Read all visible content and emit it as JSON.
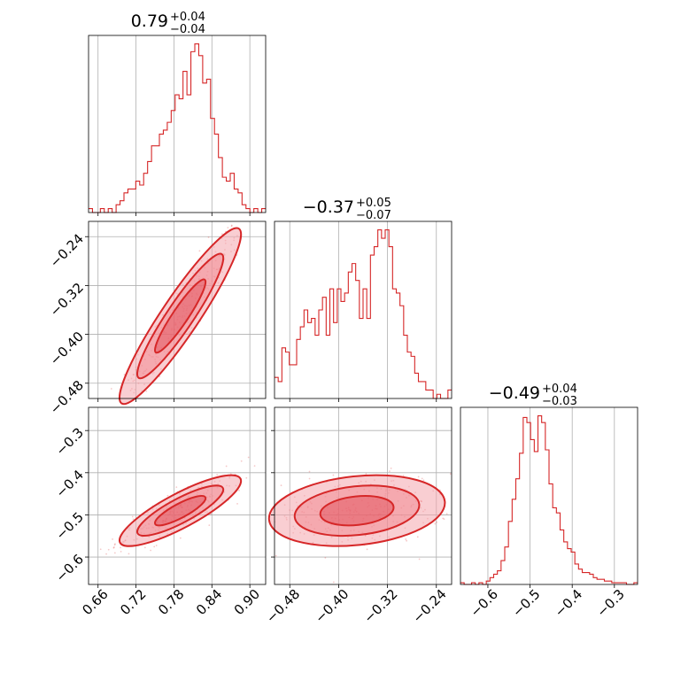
{
  "chart_data": {
    "type": "corner",
    "color": "#d62728",
    "contour_fill": "#f4a6ad",
    "grid": true,
    "parameters": [
      {
        "median": 0.79,
        "plus": 0.04,
        "minus": 0.04,
        "range": [
          0.645,
          0.925
        ],
        "ticks": [
          0.66,
          0.72,
          0.78,
          0.84,
          0.9
        ],
        "tick_labels": [
          "0.66",
          "0.72",
          "0.78",
          "0.84",
          "0.90"
        ]
      },
      {
        "median": -0.37,
        "plus": 0.05,
        "minus": 0.07,
        "range": [
          -0.505,
          -0.215
        ],
        "ticks": [
          -0.48,
          -0.4,
          -0.32,
          -0.24
        ],
        "tick_labels": [
          "−0.48",
          "−0.40",
          "−0.32",
          "−0.24"
        ]
      },
      {
        "median": -0.49,
        "plus": 0.04,
        "minus": 0.03,
        "range": [
          -0.665,
          -0.245
        ],
        "ticks": [
          -0.6,
          -0.5,
          -0.4,
          -0.3
        ],
        "tick_labels": [
          "−0.6",
          "−0.5",
          "−0.4",
          "−0.3"
        ]
      }
    ],
    "titles": [
      {
        "main": "0.79",
        "sup": "+0.04",
        "sub": "−0.04"
      },
      {
        "main": "−0.37",
        "sup": "+0.05",
        "sub": "−0.07"
      },
      {
        "main": "−0.49",
        "sup": "+0.04",
        "sub": "−0.03"
      }
    ],
    "histograms": [
      [
        1,
        0,
        0,
        1,
        0,
        1,
        0,
        2,
        3,
        5,
        6,
        6,
        8,
        7,
        10,
        13,
        17,
        17,
        20,
        21,
        23,
        26,
        30,
        29,
        36,
        30,
        41,
        43,
        40,
        33,
        34,
        24,
        20,
        14,
        9,
        8,
        10,
        6,
        5,
        2,
        1,
        0,
        1,
        0,
        1
      ],
      [
        5,
        4,
        12,
        11,
        8,
        8,
        14,
        17,
        21,
        18,
        19,
        15,
        21,
        24,
        15,
        26,
        18,
        26,
        23,
        25,
        30,
        32,
        28,
        19,
        26,
        19,
        34,
        36,
        40,
        38,
        40,
        36,
        26,
        25,
        22,
        15,
        11,
        10,
        6,
        4,
        4,
        2,
        2,
        0,
        1,
        0,
        0,
        2
      ],
      [
        1,
        0,
        0,
        1,
        0,
        1,
        0,
        2,
        4,
        6,
        8,
        14,
        22,
        37,
        50,
        62,
        77,
        98,
        95,
        85,
        78,
        99,
        95,
        79,
        59,
        45,
        42,
        32,
        25,
        21,
        19,
        12,
        9,
        7,
        7,
        6,
        4,
        3,
        3,
        2,
        2,
        1,
        1,
        1,
        1,
        0,
        0,
        1
      ]
    ],
    "correlations": [
      [
        0,
        1,
        0.93
      ],
      [
        0,
        2,
        0.84
      ],
      [
        1,
        2,
        0.22
      ]
    ],
    "sigmas": [
      0.04,
      0.06,
      0.035
    ]
  }
}
